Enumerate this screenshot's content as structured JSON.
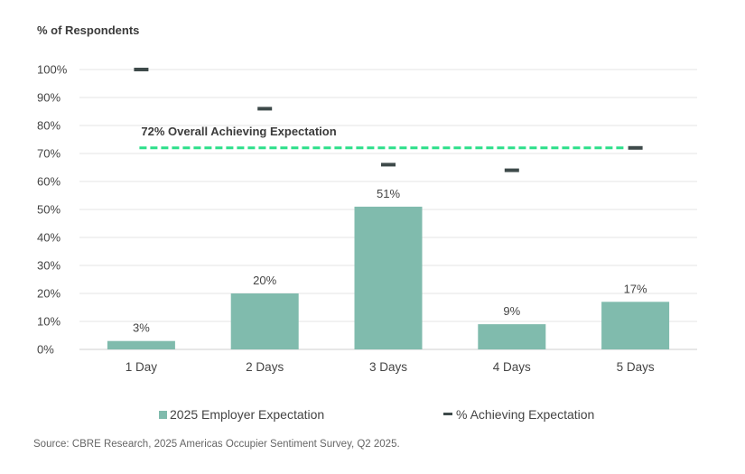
{
  "chart_data": {
    "type": "bar",
    "ylabel": "% of Respondents",
    "ylim": [
      0,
      100
    ],
    "yticks": [
      "0%",
      "10%",
      "20%",
      "30%",
      "40%",
      "50%",
      "60%",
      "70%",
      "80%",
      "90%",
      "100%"
    ],
    "grid": true,
    "categories": [
      "1 Day",
      "2 Days",
      "3 Days",
      "4 Days",
      "5 Days"
    ],
    "series": [
      {
        "name": "2025 Employer Expectation",
        "type": "bar",
        "color": "#80bbad",
        "values": [
          3,
          20,
          51,
          9,
          17
        ],
        "labels": [
          "3%",
          "20%",
          "51%",
          "9%",
          "17%"
        ]
      },
      {
        "name": "% Achieving Expectation",
        "type": "marker",
        "color": "#3e4a4a",
        "values": [
          100,
          86,
          66,
          64,
          72
        ]
      }
    ],
    "reference_line": {
      "value": 72,
      "label": "72% Overall Achieving Expectation",
      "color": "#2ddf8a",
      "style": "dashed"
    },
    "legend_position": "bottom"
  },
  "footer": {
    "source": "Source: CBRE Research, 2025 Americas Occupier Sentiment Survey, Q2 2025."
  }
}
